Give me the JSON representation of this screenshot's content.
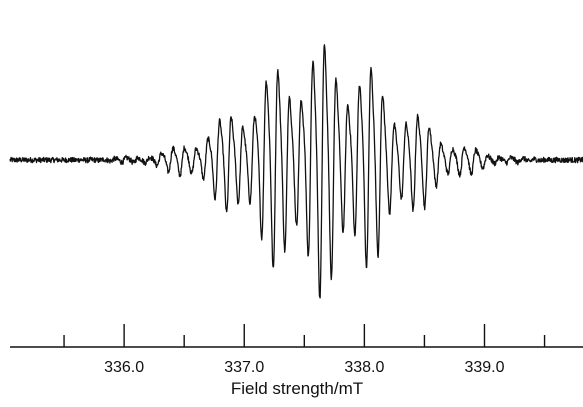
{
  "chart_data": {
    "type": "line",
    "title": "",
    "xlabel": "Field strength/mT",
    "ylabel": "",
    "xlim": [
      335.05,
      339.82
    ],
    "ylim": [
      -1.0,
      1.0
    ],
    "x_ticks_major": [
      336.0,
      337.0,
      338.0,
      339.0
    ],
    "x_ticks_minor": [
      335.5,
      336.5,
      337.5,
      338.5,
      339.5
    ],
    "x_tick_labels": [
      "336.0",
      "337.0",
      "338.0",
      "339.0"
    ],
    "grid": false,
    "legend": "none",
    "line_color": "#111111",
    "series": [
      {
        "name": "",
        "description_of_shape": "EPR hyperfine multiplet: many alternating positive/negative lines with a Gaussian envelope centered near 337.65 mT; line spacing about 0.097 mT; largest excursions near 337.2–338.0 mT",
        "envelope_center": 337.65,
        "envelope_width": 0.82,
        "line_spacing": 0.097,
        "peak_amplitude": 0.95,
        "x_points": [
          335.05,
          335.5,
          336.0,
          336.3,
          336.6,
          336.9,
          337.2,
          337.65,
          338.1,
          338.4,
          338.7,
          339.0,
          339.3,
          339.6,
          339.82
        ],
        "amplitude_envelope": [
          0.03,
          0.05,
          0.12,
          0.22,
          0.4,
          0.62,
          0.85,
          0.95,
          0.82,
          0.6,
          0.38,
          0.22,
          0.1,
          0.05,
          0.03
        ]
      }
    ]
  }
}
